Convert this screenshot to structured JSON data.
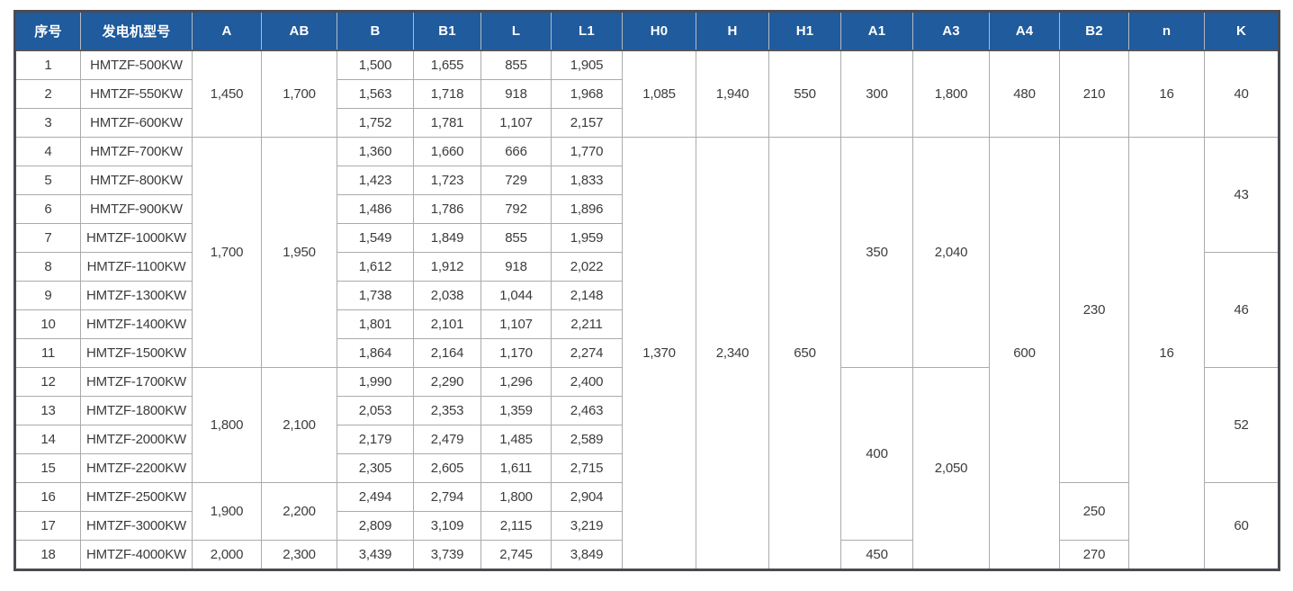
{
  "colors": {
    "header_bg": "#1f5b9d",
    "header_text": "#ffffff",
    "grid_line": "#ababab",
    "outer_border": "#4a4b52",
    "body_text": "#3c3c3c"
  },
  "chart_data": {
    "type": "table",
    "title": "",
    "columns": [
      "序号",
      "发电机型号",
      "A",
      "AB",
      "B",
      "B1",
      "L",
      "L1",
      "H0",
      "H",
      "H1",
      "A1",
      "A3",
      "A4",
      "B2",
      "n",
      "K"
    ],
    "rows": [
      [
        "1",
        "HMTZF-500KW",
        "1,450",
        "1,700",
        "1,500",
        "1,655",
        "855",
        "1,905",
        "1,085",
        "1,940",
        "550",
        "300",
        "1,800",
        "480",
        "210",
        "16",
        "40"
      ],
      [
        "2",
        "HMTZF-550KW",
        "1,450",
        "1,700",
        "1,563",
        "1,718",
        "918",
        "1,968",
        "1,085",
        "1,940",
        "550",
        "300",
        "1,800",
        "480",
        "210",
        "16",
        "40"
      ],
      [
        "3",
        "HMTZF-600KW",
        "1,450",
        "1,700",
        "1,752",
        "1,781",
        "1,107",
        "2,157",
        "1,085",
        "1,940",
        "550",
        "300",
        "1,800",
        "480",
        "210",
        "16",
        "40"
      ],
      [
        "4",
        "HMTZF-700KW",
        "1,700",
        "1,950",
        "1,360",
        "1,660",
        "666",
        "1,770",
        "1,370",
        "2,340",
        "650",
        "350",
        "2,040",
        "600",
        "230",
        "16",
        "43"
      ],
      [
        "5",
        "HMTZF-800KW",
        "1,700",
        "1,950",
        "1,423",
        "1,723",
        "729",
        "1,833",
        "1,370",
        "2,340",
        "650",
        "350",
        "2,040",
        "600",
        "230",
        "16",
        "43"
      ],
      [
        "6",
        "HMTZF-900KW",
        "1,700",
        "1,950",
        "1,486",
        "1,786",
        "792",
        "1,896",
        "1,370",
        "2,340",
        "650",
        "350",
        "2,040",
        "600",
        "230",
        "16",
        "43"
      ],
      [
        "7",
        "HMTZF-1000KW",
        "1,700",
        "1,950",
        "1,549",
        "1,849",
        "855",
        "1,959",
        "1,370",
        "2,340",
        "650",
        "350",
        "2,040",
        "600",
        "230",
        "16",
        "43"
      ],
      [
        "8",
        "HMTZF-1100KW",
        "1,700",
        "1,950",
        "1,612",
        "1,912",
        "918",
        "2,022",
        "1,370",
        "2,340",
        "650",
        "350",
        "2,040",
        "600",
        "230",
        "16",
        "46"
      ],
      [
        "9",
        "HMTZF-1300KW",
        "1,700",
        "1,950",
        "1,738",
        "2,038",
        "1,044",
        "2,148",
        "1,370",
        "2,340",
        "650",
        "350",
        "2,040",
        "600",
        "230",
        "16",
        "46"
      ],
      [
        "10",
        "HMTZF-1400KW",
        "1,700",
        "1,950",
        "1,801",
        "2,101",
        "1,107",
        "2,211",
        "1,370",
        "2,340",
        "650",
        "350",
        "2,040",
        "600",
        "230",
        "16",
        "46"
      ],
      [
        "11",
        "HMTZF-1500KW",
        "1,700",
        "1,950",
        "1,864",
        "2,164",
        "1,170",
        "2,274",
        "1,370",
        "2,340",
        "650",
        "350",
        "2,040",
        "600",
        "230",
        "16",
        "46"
      ],
      [
        "12",
        "HMTZF-1700KW",
        "1,800",
        "2,100",
        "1,990",
        "2,290",
        "1,296",
        "2,400",
        "1,370",
        "2,340",
        "650",
        "400",
        "2,050",
        "600",
        "230",
        "16",
        "52"
      ],
      [
        "13",
        "HMTZF-1800KW",
        "1,800",
        "2,100",
        "2,053",
        "2,353",
        "1,359",
        "2,463",
        "1,370",
        "2,340",
        "650",
        "400",
        "2,050",
        "600",
        "230",
        "16",
        "52"
      ],
      [
        "14",
        "HMTZF-2000KW",
        "1,800",
        "2,100",
        "2,179",
        "2,479",
        "1,485",
        "2,589",
        "1,370",
        "2,340",
        "650",
        "400",
        "2,050",
        "600",
        "230",
        "16",
        "52"
      ],
      [
        "15",
        "HMTZF-2200KW",
        "1,800",
        "2,100",
        "2,305",
        "2,605",
        "1,611",
        "2,715",
        "1,370",
        "2,340",
        "650",
        "400",
        "2,050",
        "600",
        "230",
        "16",
        "52"
      ],
      [
        "16",
        "HMTZF-2500KW",
        "1,900",
        "2,200",
        "2,494",
        "2,794",
        "1,800",
        "2,904",
        "1,370",
        "2,340",
        "650",
        "400",
        "2,050",
        "600",
        "250",
        "16",
        "60"
      ],
      [
        "17",
        "HMTZF-3000KW",
        "1,900",
        "2,200",
        "2,809",
        "3,109",
        "2,115",
        "3,219",
        "1,370",
        "2,340",
        "650",
        "400",
        "2,050",
        "600",
        "250",
        "16",
        "60"
      ],
      [
        "18",
        "HMTZF-4000KW",
        "2,000",
        "2,300",
        "3,439",
        "3,739",
        "2,745",
        "3,849",
        "1,370",
        "2,340",
        "650",
        "450",
        "2,050",
        "600",
        "270",
        "16",
        "60"
      ]
    ],
    "merges": [
      {
        "r": 0,
        "c": 2,
        "rs": 3
      },
      {
        "r": 0,
        "c": 3,
        "rs": 3
      },
      {
        "r": 0,
        "c": 8,
        "rs": 3
      },
      {
        "r": 0,
        "c": 9,
        "rs": 3
      },
      {
        "r": 0,
        "c": 10,
        "rs": 3
      },
      {
        "r": 0,
        "c": 11,
        "rs": 3
      },
      {
        "r": 0,
        "c": 12,
        "rs": 3
      },
      {
        "r": 0,
        "c": 13,
        "rs": 3
      },
      {
        "r": 0,
        "c": 14,
        "rs": 3
      },
      {
        "r": 0,
        "c": 15,
        "rs": 3
      },
      {
        "r": 0,
        "c": 16,
        "rs": 3
      },
      {
        "r": 3,
        "c": 2,
        "rs": 8
      },
      {
        "r": 3,
        "c": 3,
        "rs": 8
      },
      {
        "r": 3,
        "c": 8,
        "rs": 15
      },
      {
        "r": 3,
        "c": 9,
        "rs": 15
      },
      {
        "r": 3,
        "c": 10,
        "rs": 15
      },
      {
        "r": 3,
        "c": 11,
        "rs": 8
      },
      {
        "r": 3,
        "c": 12,
        "rs": 8
      },
      {
        "r": 3,
        "c": 13,
        "rs": 15
      },
      {
        "r": 3,
        "c": 14,
        "rs": 12
      },
      {
        "r": 3,
        "c": 15,
        "rs": 15
      },
      {
        "r": 3,
        "c": 16,
        "rs": 4
      },
      {
        "r": 7,
        "c": 16,
        "rs": 4
      },
      {
        "r": 11,
        "c": 2,
        "rs": 4
      },
      {
        "r": 11,
        "c": 3,
        "rs": 4
      },
      {
        "r": 11,
        "c": 11,
        "rs": 6
      },
      {
        "r": 11,
        "c": 12,
        "rs": 7
      },
      {
        "r": 11,
        "c": 16,
        "rs": 4
      },
      {
        "r": 15,
        "c": 2,
        "rs": 2
      },
      {
        "r": 15,
        "c": 3,
        "rs": 2
      },
      {
        "r": 15,
        "c": 14,
        "rs": 2
      },
      {
        "r": 15,
        "c": 16,
        "rs": 3
      }
    ]
  }
}
